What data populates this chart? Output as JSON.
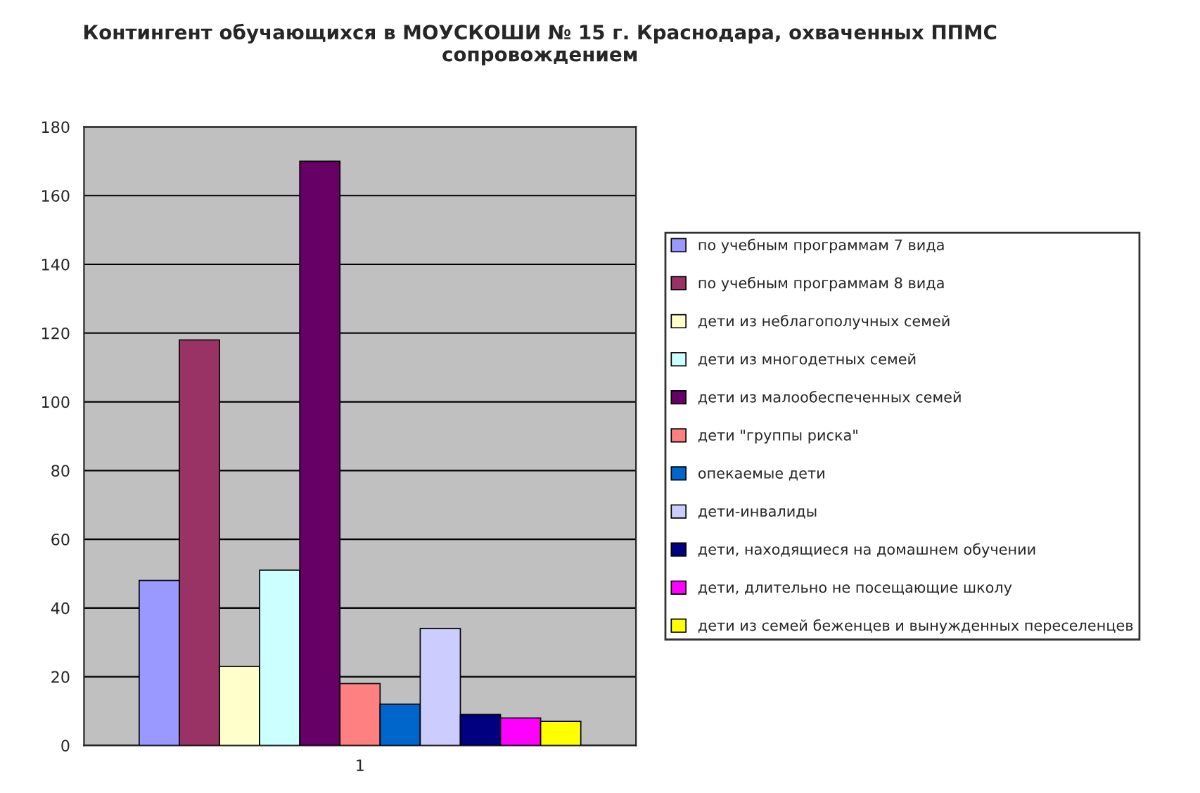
{
  "chart_data": {
    "type": "bar",
    "title": "Контингент обучающихся в МОУСКОШИ № 15 г. Краснодара, охваченных ППМС сопровождением",
    "categories": [
      "1"
    ],
    "series": [
      {
        "name": "по учебным программам 7 вида",
        "color": "#9999ff",
        "values": [
          48
        ]
      },
      {
        "name": "по учебным программам 8 вида",
        "color": "#993366",
        "values": [
          118
        ]
      },
      {
        "name": "дети из неблагополучных семей",
        "color": "#ffffcc",
        "values": [
          23
        ]
      },
      {
        "name": "дети из многодетных семей",
        "color": "#ccffff",
        "values": [
          51
        ]
      },
      {
        "name": "дети из малообеспеченных семей",
        "color": "#660066",
        "values": [
          170
        ]
      },
      {
        "name": "дети \"группы риска\"",
        "color": "#ff8080",
        "values": [
          18
        ]
      },
      {
        "name": "опекаемые дети",
        "color": "#0066cc",
        "values": [
          12
        ]
      },
      {
        "name": "дети-инвалиды",
        "color": "#ccccff",
        "values": [
          34
        ]
      },
      {
        "name": "дети, находящиеся на домашнем обучении",
        "color": "#000080",
        "values": [
          9
        ]
      },
      {
        "name": "дети, длительно не посещающие школу",
        "color": "#ff00ff",
        "values": [
          8
        ]
      },
      {
        "name": "дети из семей беженцев и вынужденных переселенцев",
        "color": "#ffff00",
        "values": [
          7
        ]
      }
    ],
    "ylim": [
      0,
      180
    ],
    "yticks": [
      0,
      20,
      40,
      60,
      80,
      100,
      120,
      140,
      160,
      180
    ],
    "grid": "y",
    "legend": "right"
  }
}
